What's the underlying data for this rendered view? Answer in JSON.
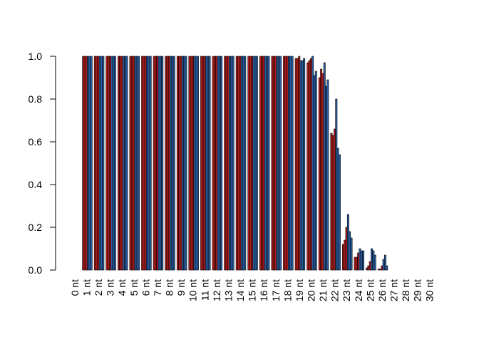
{
  "chart_data": {
    "type": "bar",
    "title": "",
    "xlabel": "",
    "ylabel": "",
    "ylim": [
      0,
      1
    ],
    "yticks": [
      "0.0",
      "0.2",
      "0.4",
      "0.6",
      "0.8",
      "1.0"
    ],
    "grid": false,
    "legend": "none",
    "colors": [
      "#b01c1c",
      "#b01c1c",
      "#b01c1c",
      "#2b5fa3",
      "#2b5fa3",
      "#2b5fa3"
    ],
    "categories": [
      "0 nt",
      "1 nt",
      "2 nt",
      "3 nt",
      "4 nt",
      "5 nt",
      "6 nt",
      "7 nt",
      "8 nt",
      "9 nt",
      "10 nt",
      "11 nt",
      "12 nt",
      "13 nt",
      "14 nt",
      "15 nt",
      "16 nt",
      "17 nt",
      "18 nt",
      "19 nt",
      "20 nt",
      "21 nt",
      "22 nt",
      "23 nt",
      "24 nt",
      "25 nt",
      "26 nt",
      "27 nt",
      "28 nt",
      "29 nt",
      "30 nt"
    ],
    "series": [
      {
        "values": [
          0,
          1,
          1,
          1,
          1,
          1,
          1,
          1,
          1,
          1,
          1,
          1,
          1,
          1,
          1,
          1,
          1,
          1,
          1,
          0.99,
          0.97,
          0.9,
          0.64,
          0.12,
          0.06,
          0.01,
          0.005,
          0,
          0,
          0,
          0
        ]
      },
      {
        "values": [
          0,
          1,
          1,
          1,
          1,
          1,
          1,
          1,
          1,
          1,
          1,
          1,
          1,
          1,
          1,
          1,
          1,
          1,
          1,
          0.99,
          0.98,
          0.94,
          0.63,
          0.14,
          0.06,
          0.02,
          0.005,
          0,
          0,
          0,
          0
        ]
      },
      {
        "values": [
          0,
          1,
          1,
          1,
          1,
          1,
          1,
          1,
          1,
          1,
          1,
          1,
          1,
          1,
          1,
          1,
          1,
          1,
          1,
          1.0,
          0.99,
          0.92,
          0.66,
          0.2,
          0.08,
          0.04,
          0.02,
          0,
          0,
          0,
          0
        ]
      },
      {
        "values": [
          0,
          1,
          1,
          1,
          1,
          1,
          1,
          1,
          1,
          1,
          1,
          1,
          1,
          1,
          1,
          1,
          1,
          1,
          1,
          0.98,
          1.0,
          0.97,
          0.8,
          0.26,
          0.1,
          0.1,
          0.05,
          0,
          0,
          0,
          0
        ]
      },
      {
        "values": [
          0,
          1,
          1,
          1,
          1,
          1,
          1,
          1,
          1,
          1,
          1,
          1,
          1,
          1,
          1,
          1,
          1,
          1,
          1,
          0.98,
          0.91,
          0.86,
          0.57,
          0.18,
          0.09,
          0.09,
          0.07,
          0,
          0,
          0,
          0
        ]
      },
      {
        "values": [
          0,
          1,
          1,
          1,
          1,
          1,
          1,
          1,
          1,
          1,
          1,
          1,
          1,
          1,
          1,
          1,
          1,
          1,
          1,
          0.99,
          0.93,
          0.89,
          0.54,
          0.15,
          0.09,
          0.07,
          0.02,
          0,
          0,
          0,
          0
        ]
      }
    ]
  }
}
